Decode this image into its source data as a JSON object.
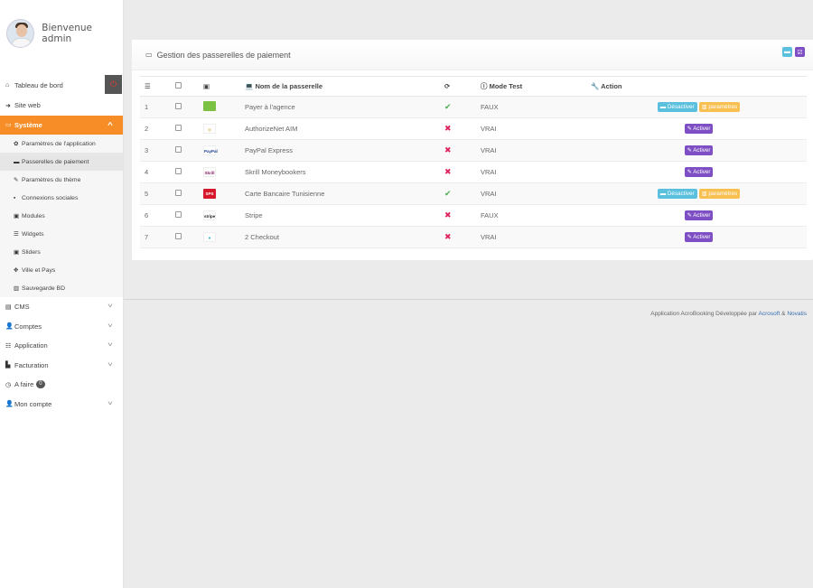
{
  "profile": {
    "welcome": "Bienvenue admin"
  },
  "sidebar": {
    "dashboard": "Tableau de bord",
    "items_top": [
      {
        "icon": "sign-in-icon",
        "glyph": "➜",
        "label": "Site web"
      }
    ],
    "systeme": {
      "label": "Système",
      "glyph": "▭"
    },
    "submenu": [
      {
        "icon": "gear-icon",
        "glyph": "✿",
        "label": "Paramètres de l'application",
        "selected": false
      },
      {
        "icon": "credit-card-icon",
        "glyph": "▬",
        "label": "Passerelles de paiement",
        "selected": true
      },
      {
        "icon": "thumbtack-icon",
        "glyph": "✎",
        "label": "Paramètres du thème",
        "selected": false
      },
      {
        "icon": "share-icon",
        "glyph": "▪",
        "label": "Connexions sociales",
        "selected": false
      },
      {
        "icon": "image-icon",
        "glyph": "▣",
        "label": "Modules",
        "selected": false
      },
      {
        "icon": "list-icon",
        "glyph": "☰",
        "label": "Widgets",
        "selected": false
      },
      {
        "icon": "picture-icon",
        "glyph": "▣",
        "label": "Sliders",
        "selected": false
      },
      {
        "icon": "arrows-icon",
        "glyph": "✥",
        "label": "Ville et Pays",
        "selected": false
      },
      {
        "icon": "database-icon",
        "glyph": "▥",
        "label": "Sauvegarde BD",
        "selected": false
      }
    ],
    "items_bottom": [
      {
        "name": "cms",
        "icon": "cms-icon",
        "glyph": "▤",
        "label": "CMS",
        "chevron": true,
        "badge": ""
      },
      {
        "name": "comptes",
        "icon": "user-icon",
        "glyph": "👤",
        "label": "Comptes",
        "chevron": true,
        "badge": ""
      },
      {
        "name": "application",
        "icon": "list-icon",
        "glyph": "☷",
        "label": "Application",
        "chevron": true,
        "badge": ""
      },
      {
        "name": "facturation",
        "icon": "invoice-icon",
        "glyph": "▙",
        "label": "Facturation",
        "chevron": true,
        "badge": ""
      },
      {
        "name": "a-faire",
        "icon": "clock-icon",
        "glyph": "◷",
        "label": "A faire",
        "chevron": false,
        "badge": "0"
      },
      {
        "name": "mon-compte",
        "icon": "user-icon",
        "glyph": "👤",
        "label": "Mon compte",
        "chevron": true,
        "badge": ""
      }
    ]
  },
  "panel": {
    "title": "Gestion des passerelles de paiement"
  },
  "table": {
    "headers": {
      "name": "Nom de la passerelle",
      "mode": "Mode Test",
      "action": "Action"
    },
    "rows": [
      {
        "num": "1",
        "logo": "agency-logo",
        "logo_text": "",
        "logo_bg": "#7cc242",
        "logo_fg": "#fff",
        "name": "Payer à l'agence",
        "status": "ok",
        "mode": "FAUX",
        "actions": [
          "desactiver",
          "parametres"
        ]
      },
      {
        "num": "2",
        "logo": "authorizenet-logo",
        "logo_text": "◎",
        "logo_bg": "#fff",
        "logo_fg": "#c9a227",
        "name": "AuthorizeNet AIM",
        "status": "ko",
        "mode": "VRAI",
        "actions": [
          "activer"
        ]
      },
      {
        "num": "3",
        "logo": "paypal-logo",
        "logo_text": "PayPal",
        "logo_bg": "#fff",
        "logo_fg": "#1b3e8c",
        "name": "PayPal Express",
        "status": "ko",
        "mode": "VRAI",
        "actions": [
          "activer"
        ]
      },
      {
        "num": "4",
        "logo": "skrill-logo",
        "logo_text": "Skrill",
        "logo_bg": "#fff",
        "logo_fg": "#862165",
        "name": "Skrill Moneybookers",
        "status": "ko",
        "mode": "VRAI",
        "actions": [
          "activer"
        ]
      },
      {
        "num": "5",
        "logo": "sps-logo",
        "logo_text": "SPS",
        "logo_bg": "#d7182a",
        "logo_fg": "#fff",
        "name": "Carte Bancaire Tunisienne",
        "status": "ok",
        "mode": "VRAI",
        "actions": [
          "desactiver",
          "parametres"
        ]
      },
      {
        "num": "6",
        "logo": "stripe-logo",
        "logo_text": "stripe",
        "logo_bg": "#fff",
        "logo_fg": "#222",
        "name": "Stripe",
        "status": "ko",
        "mode": "FAUX",
        "actions": [
          "activer"
        ]
      },
      {
        "num": "7",
        "logo": "2checkout-logo",
        "logo_text": "●",
        "logo_bg": "#fff",
        "logo_fg": "#1ba0d8",
        "name": "2 Checkout",
        "status": "ko",
        "mode": "VRAI",
        "actions": [
          "activer"
        ]
      }
    ],
    "action_labels": {
      "activer": "Activer",
      "desactiver": "Désactiver",
      "parametres": "paramètres"
    }
  },
  "footer": {
    "prefix": "Application AcroBooking Développée par ",
    "link1": "Acrosoft",
    "sep": " & ",
    "link2": "Novatis"
  },
  "colors": {
    "accent": "#f68d26",
    "activer": "#7e4fc4",
    "desactiver": "#5bc0de",
    "parametres": "#f8c051",
    "ok": "#4caf50",
    "ko": "#e0245e"
  }
}
